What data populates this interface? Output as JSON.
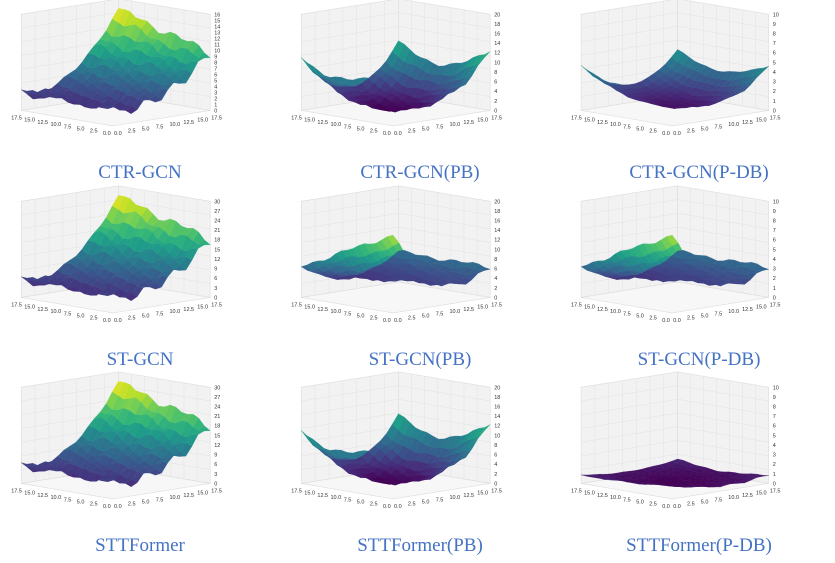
{
  "figure": {
    "panels": [
      {
        "id": "ctr-gcn",
        "caption": "CTR-GCN",
        "zmax": 16,
        "zstep": 1,
        "shape": "rise"
      },
      {
        "id": "ctr-gcn-pb",
        "caption": "CTR-GCN(PB)",
        "zmax": 20,
        "zstep": 2,
        "shape": "bowl"
      },
      {
        "id": "ctr-gcn-pdb",
        "caption": "CTR-GCN(P-DB)",
        "zmax": 10,
        "zstep": 1,
        "shape": "shallow"
      },
      {
        "id": "st-gcn",
        "caption": "ST-GCN",
        "zmax": 30,
        "zstep": 3,
        "shape": "rise"
      },
      {
        "id": "st-gcn-pb",
        "caption": "ST-GCN(PB)",
        "zmax": 20,
        "zstep": 2,
        "shape": "valley"
      },
      {
        "id": "st-gcn-pdb",
        "caption": "ST-GCN(P-DB)",
        "zmax": 10,
        "zstep": 1,
        "shape": "valley"
      },
      {
        "id": "sttformer",
        "caption": "STTFormer",
        "zmax": 30,
        "zstep": 3,
        "shape": "rise"
      },
      {
        "id": "sttformer-pb",
        "caption": "STTFormer(PB)",
        "zmax": 20,
        "zstep": 2,
        "shape": "bowl"
      },
      {
        "id": "sttformer-pdb",
        "caption": "STTFormer(P-DB)",
        "zmax": 10,
        "zstep": 1,
        "shape": "flat"
      }
    ],
    "xy_ticks": [
      "0.0",
      "2.5",
      "5.0",
      "7.5",
      "10.0",
      "12.5",
      "15.0",
      "17.5"
    ]
  },
  "chart_data": {
    "type": "surface",
    "description_axes": {
      "x_range": [
        0,
        17.5
      ],
      "y_range": [
        0,
        17.5
      ]
    },
    "colormap": "viridis",
    "panels": [
      {
        "caption": "CTR-GCN",
        "z_range": [
          0,
          16
        ]
      },
      {
        "caption": "CTR-GCN(PB)",
        "z_range": [
          0,
          20
        ]
      },
      {
        "caption": "CTR-GCN(P-DB)",
        "z_range": [
          0,
          10
        ]
      },
      {
        "caption": "ST-GCN",
        "z_range": [
          0,
          30
        ]
      },
      {
        "caption": "ST-GCN(PB)",
        "z_range": [
          0,
          20
        ]
      },
      {
        "caption": "ST-GCN(P-DB)",
        "z_range": [
          0,
          10
        ]
      },
      {
        "caption": "STTFormer",
        "z_range": [
          0,
          30
        ]
      },
      {
        "caption": "STTFormer(PB)",
        "z_range": [
          0,
          20
        ]
      },
      {
        "caption": "STTFormer(P-DB)",
        "z_range": [
          0,
          10
        ]
      }
    ]
  }
}
